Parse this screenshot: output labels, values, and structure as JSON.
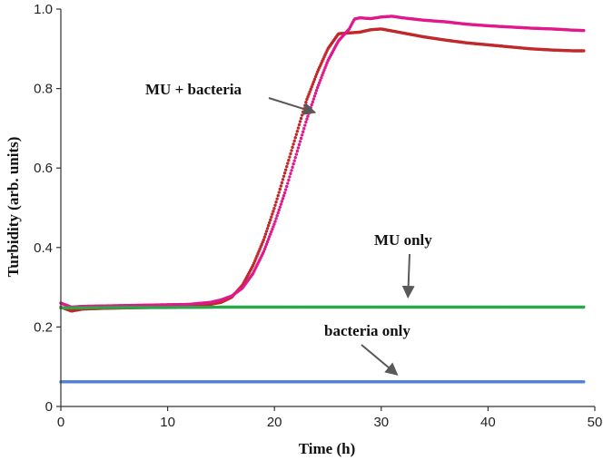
{
  "chart_data": {
    "type": "scatter",
    "title": "",
    "xlabel": "Time (h)",
    "ylabel": "Turbidity (arb. units)",
    "xlim": [
      0,
      50
    ],
    "ylim": [
      0,
      1.0
    ],
    "xticks": [
      0,
      10,
      20,
      30,
      40,
      50
    ],
    "yticks": [
      0,
      0.2,
      0.4,
      0.6,
      0.8,
      1.0
    ],
    "xtick_labels": [
      "0",
      "10",
      "20",
      "30",
      "40",
      "50"
    ],
    "ytick_labels": [
      "0",
      "0.2",
      "0.4",
      "0.6",
      "0.8",
      "1.0"
    ],
    "grid": false,
    "legend": "none",
    "series": [
      {
        "color": "#c0282a",
        "x": [
          0,
          1,
          2,
          4,
          6,
          8,
          10,
          12,
          14,
          15,
          16,
          17,
          18,
          19,
          20,
          21,
          22,
          23,
          24,
          25,
          26,
          27,
          28,
          29,
          30,
          32,
          34,
          36,
          38,
          40,
          42,
          44,
          46,
          48,
          49
        ],
        "values": [
          0.25,
          0.24,
          0.245,
          0.247,
          0.248,
          0.249,
          0.25,
          0.252,
          0.257,
          0.262,
          0.275,
          0.305,
          0.355,
          0.42,
          0.5,
          0.59,
          0.68,
          0.77,
          0.84,
          0.9,
          0.938,
          0.94,
          0.942,
          0.948,
          0.95,
          0.94,
          0.93,
          0.922,
          0.915,
          0.91,
          0.905,
          0.9,
          0.897,
          0.895,
          0.895
        ]
      },
      {
        "color": "#e0198c",
        "x": [
          0,
          1,
          2,
          4,
          6,
          8,
          10,
          12,
          14,
          15,
          16,
          17,
          18,
          19,
          20,
          21,
          22,
          23,
          24,
          25,
          26,
          27,
          27.5,
          28,
          29,
          30,
          31,
          32,
          34,
          36,
          38,
          40,
          42,
          44,
          46,
          48,
          49
        ],
        "values": [
          0.26,
          0.25,
          0.252,
          0.253,
          0.254,
          0.255,
          0.256,
          0.257,
          0.262,
          0.268,
          0.278,
          0.298,
          0.335,
          0.39,
          0.46,
          0.54,
          0.63,
          0.72,
          0.8,
          0.87,
          0.92,
          0.95,
          0.975,
          0.978,
          0.976,
          0.98,
          0.982,
          0.978,
          0.972,
          0.968,
          0.962,
          0.958,
          0.955,
          0.952,
          0.95,
          0.947,
          0.946
        ]
      },
      {
        "color": "#2aa84a",
        "x": [
          0,
          5,
          10,
          15,
          20,
          25,
          30,
          35,
          40,
          45,
          49
        ],
        "values": [
          0.248,
          0.249,
          0.249,
          0.25,
          0.25,
          0.25,
          0.25,
          0.25,
          0.25,
          0.25,
          0.25
        ]
      },
      {
        "color": "#4f80d6",
        "x": [
          0,
          5,
          10,
          15,
          20,
          25,
          30,
          35,
          40,
          45,
          49
        ],
        "values": [
          0.062,
          0.062,
          0.062,
          0.062,
          0.062,
          0.062,
          0.062,
          0.062,
          0.062,
          0.062,
          0.062
        ]
      }
    ],
    "annotations": [
      {
        "text": "MU + bacteria",
        "target": {
          "x": 23.8,
          "y": 0.74
        }
      },
      {
        "text": "MU only",
        "target": {
          "x": 32.5,
          "y": 0.275
        }
      },
      {
        "text": "bacteria only",
        "target": {
          "x": 31.5,
          "y": 0.08
        }
      }
    ]
  }
}
